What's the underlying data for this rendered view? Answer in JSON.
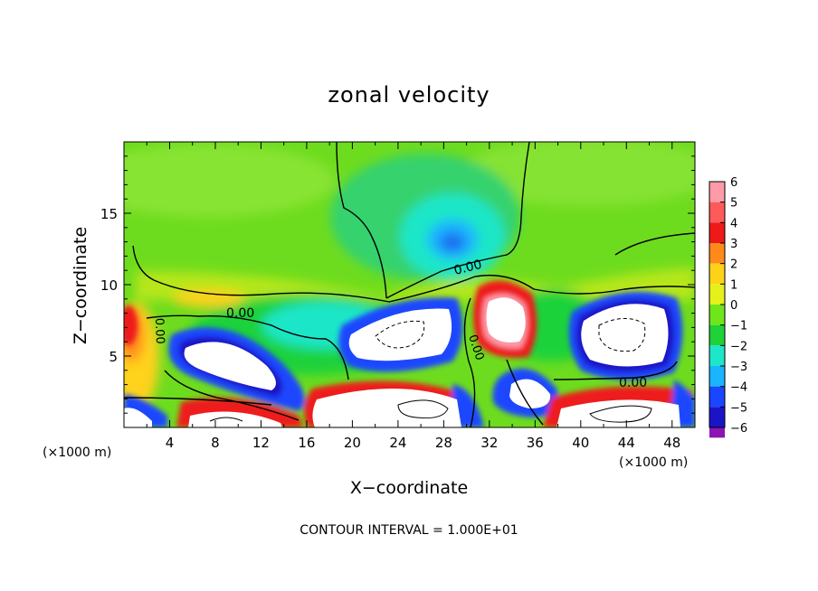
{
  "chart_data": {
    "type": "heatmap",
    "title": "zonal velocity",
    "xlabel": "X−coordinate",
    "ylabel": "Z−coordinate",
    "x_unit_left": "(×1000 m)",
    "x_unit_right": "(×1000 m)",
    "xlim": [
      0,
      50
    ],
    "ylim": [
      0,
      20
    ],
    "x_ticks": [
      4,
      8,
      12,
      16,
      20,
      24,
      28,
      32,
      36,
      40,
      44,
      48
    ],
    "y_ticks": [
      5,
      10,
      15
    ],
    "colorbar": {
      "ticks": [
        6,
        5,
        4,
        3,
        2,
        1,
        0,
        -1,
        -2,
        -3,
        -4,
        -5,
        -6
      ],
      "tick_labels": [
        "6",
        "5",
        "4",
        "3",
        "2",
        "1",
        "0",
        "−1",
        "−2",
        "−3",
        "−4",
        "−5",
        "−6"
      ],
      "colors": [
        "#ff9aa8",
        "#ff5a5a",
        "#ee1a1a",
        "#ff8a1a",
        "#ffd21a",
        "#e6f01a",
        "#6ee61a",
        "#1ed23a",
        "#1ee6c8",
        "#1ab4ff",
        "#1a46ff",
        "#1a14c8",
        "#8c14b4"
      ]
    },
    "contour_labels": [
      "0.00",
      "0.00",
      "0.00",
      "0.00",
      "0.00"
    ],
    "features": [
      {
        "x": 11,
        "z": 5.5,
        "value": -8
      },
      {
        "x": 26,
        "z": 6.5,
        "value": -8
      },
      {
        "x": 44,
        "z": 6.2,
        "value": -8
      },
      {
        "x": 32.5,
        "z": 7.6,
        "value": 7
      },
      {
        "x": 28,
        "z": 13.5,
        "value": -3.5
      },
      {
        "x": 36,
        "z": 2.3,
        "value": -7
      },
      {
        "x": 25,
        "z": 1.5,
        "value": 7
      },
      {
        "x": 10,
        "z": 0.6,
        "value": 7
      },
      {
        "x": 44,
        "z": 1.0,
        "value": 7
      },
      {
        "x": 0.7,
        "z": 6.5,
        "value": 4
      },
      {
        "x": 2.2,
        "z": 8.5,
        "value": 3
      }
    ],
    "footnote": "CONTOUR INTERVAL = 1.000E+01"
  }
}
